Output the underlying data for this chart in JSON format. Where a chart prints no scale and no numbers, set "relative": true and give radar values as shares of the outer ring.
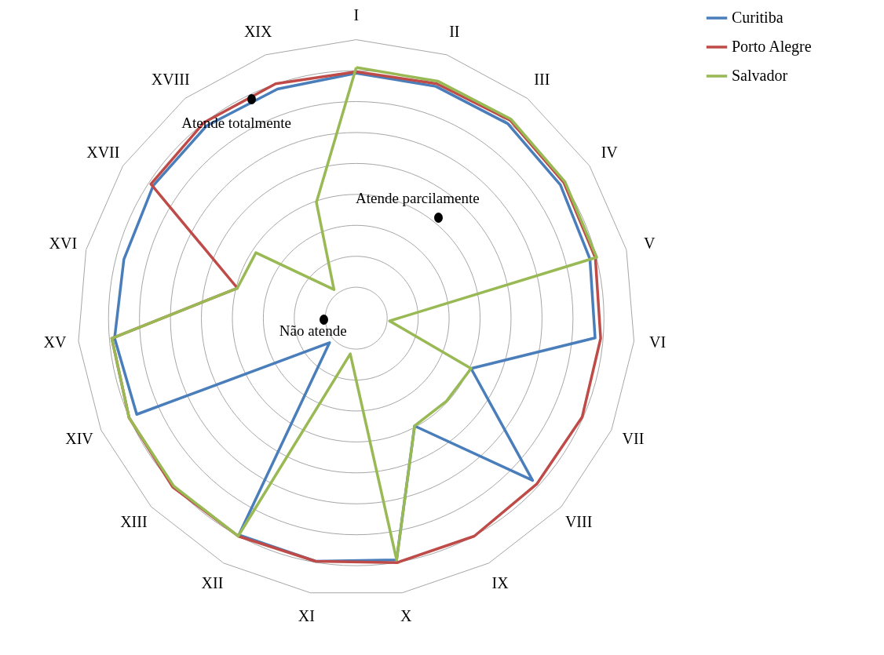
{
  "chart_data": {
    "type": "radar",
    "relative": true,
    "legend": "right",
    "categories": [
      "I",
      "II",
      "III",
      "IV",
      "V",
      "VI",
      "VII",
      "VIII",
      "IX",
      "X",
      "XI",
      "XII",
      "XIII",
      "XIV",
      "XV",
      "XVI",
      "XVII",
      "XVIII",
      "XIX"
    ],
    "series": [
      {
        "name": "Curitiba",
        "color": "#4a7ebb",
        "values": [
          0.88,
          0.88,
          0.885,
          0.875,
          0.865,
          0.86,
          0.45,
          0.86,
          0.44,
          0.88,
          0.885,
          0.885,
          0.13,
          0.86,
          0.87,
          0.86,
          0.87,
          0.875,
          0.87
        ]
      },
      {
        "name": "Porto Alegre",
        "color": "#be4b48",
        "values": [
          0.885,
          0.89,
          0.9,
          0.89,
          0.885,
          0.88,
          0.885,
          0.88,
          0.89,
          0.89,
          0.885,
          0.89,
          0.895,
          0.89,
          0.88,
          0.44,
          0.88,
          0.89,
          0.89
        ]
      },
      {
        "name": "Salvador",
        "color": "#98b954",
        "values": [
          0.9,
          0.9,
          0.905,
          0.895,
          0.89,
          0.12,
          0.45,
          0.44,
          0.44,
          0.88,
          0.13,
          0.89,
          0.89,
          0.89,
          0.88,
          0.44,
          0.43,
          0.13,
          0.44
        ]
      }
    ],
    "annotations": [
      "Atende totalmente",
      "Atende parcilamente",
      "Não atende"
    ]
  }
}
